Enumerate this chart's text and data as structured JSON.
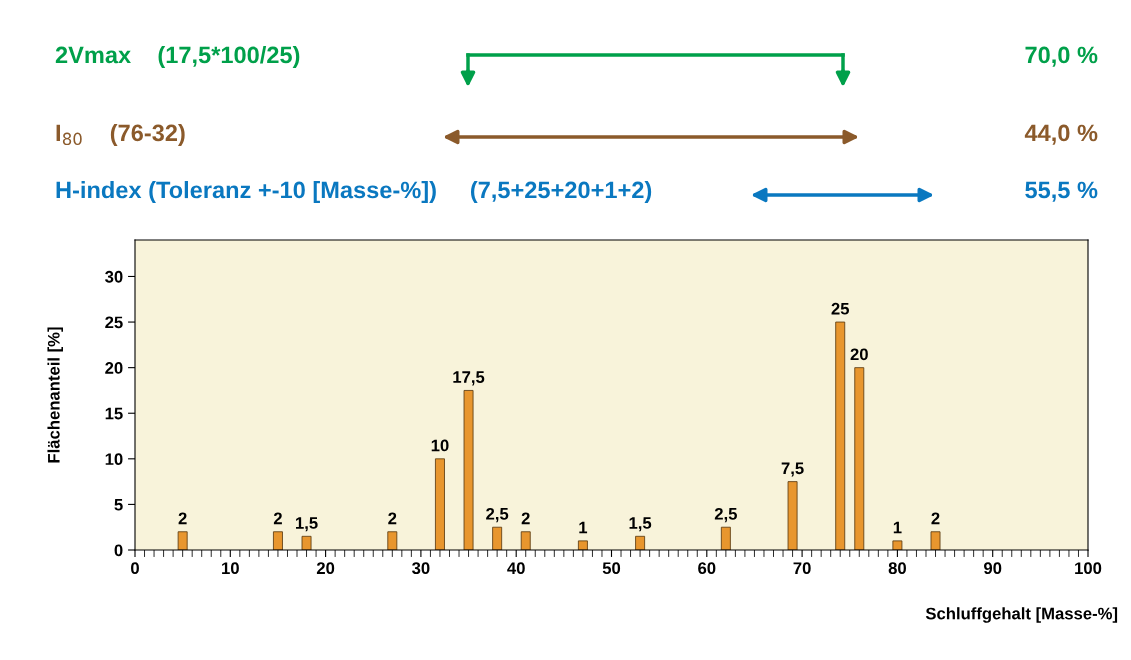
{
  "chart_data": {
    "type": "bar",
    "x": [
      5,
      15,
      18,
      27,
      32,
      35,
      38,
      41,
      47,
      53,
      62,
      69,
      74,
      76,
      80,
      84
    ],
    "values": [
      2,
      2,
      1.5,
      2,
      10,
      17.5,
      2.5,
      2,
      1,
      1.5,
      2.5,
      7.5,
      25,
      20,
      1,
      2
    ],
    "value_labels": [
      "2",
      "2",
      "1,5",
      "2",
      "10",
      "17,5",
      "2,5",
      "2",
      "1",
      "1,5",
      "2,5",
      "7,5",
      "25",
      "20",
      "1",
      "2"
    ],
    "color": "#e8962e",
    "xlim": [
      0,
      100
    ],
    "xticks": [
      0,
      10,
      20,
      30,
      40,
      50,
      60,
      70,
      80,
      90,
      100
    ],
    "ylim": [
      0,
      34
    ],
    "yticks": [
      0,
      5,
      10,
      15,
      20,
      25,
      30
    ],
    "xlabel": "Schluffgehalt [Masse-%]",
    "ylabel": "Flächenanteil [%]",
    "grid": false,
    "annotations": [
      "2Vmax    (17,5*100/25)",
      "70,0 %",
      "I$_{80}$    (76-32)",
      "44,0 %",
      "H-index (Toleranz +-10 [Masse-%])     (7,5+25+20+1+2)",
      "55,5 %"
    ]
  }
}
